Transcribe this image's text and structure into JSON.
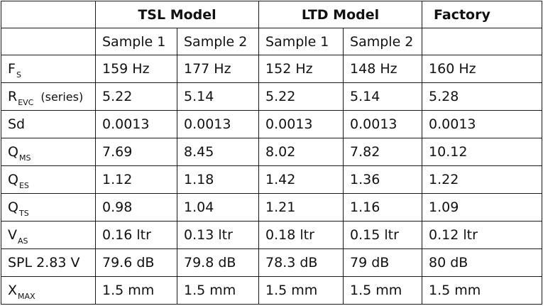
{
  "table": {
    "groups": [
      {
        "label": "",
        "span": 1
      },
      {
        "label": "TSL Model",
        "span": 2
      },
      {
        "label": "LTD Model",
        "span": 2
      },
      {
        "label": "Factory",
        "span": 1
      }
    ],
    "sample_headers": [
      "Sample 1",
      "Sample 2",
      "Sample 1",
      "Sample 2",
      ""
    ],
    "rows": [
      {
        "label": {
          "base": "F",
          "sub": "S",
          "extra": ""
        },
        "values": [
          "159 Hz",
          "177 Hz",
          "152 Hz",
          "148 Hz",
          "160 Hz"
        ]
      },
      {
        "label": {
          "base": "R",
          "sub": "EVC",
          "extra": "(series)"
        },
        "values": [
          "5.22",
          "5.14",
          "5.22",
          "5.14",
          "5.28"
        ]
      },
      {
        "label": {
          "base": "Sd",
          "sub": "",
          "extra": ""
        },
        "values": [
          "0.0013",
          "0.0013",
          "0.0013",
          "0.0013",
          "0.0013"
        ]
      },
      {
        "label": {
          "base": "Q",
          "sub": "MS",
          "extra": ""
        },
        "values": [
          "7.69",
          "8.45",
          "8.02",
          "7.82",
          "10.12"
        ]
      },
      {
        "label": {
          "base": "Q",
          "sub": "ES",
          "extra": ""
        },
        "values": [
          "1.12",
          "1.18",
          "1.42",
          "1.36",
          "1.22"
        ]
      },
      {
        "label": {
          "base": "Q",
          "sub": "TS",
          "extra": ""
        },
        "values": [
          "0.98",
          "1.04",
          "1.21",
          "1.16",
          "1.09"
        ]
      },
      {
        "label": {
          "base": "V",
          "sub": "AS",
          "extra": ""
        },
        "values": [
          "0.16 ltr",
          "0.13 ltr",
          "0.18 ltr",
          "0.15 ltr",
          "0.12 ltr"
        ]
      },
      {
        "label": {
          "base": "SPL 2.83 V",
          "sub": "",
          "extra": ""
        },
        "values": [
          "79.6 dB",
          "79.8 dB",
          "78.3 dB",
          "79 dB",
          "80 dB"
        ]
      },
      {
        "label": {
          "base": "X",
          "sub": "MAX",
          "extra": ""
        },
        "values": [
          "1.5 mm",
          "1.5 mm",
          "1.5 mm",
          "1.5 mm",
          "1.5 mm"
        ]
      }
    ]
  }
}
